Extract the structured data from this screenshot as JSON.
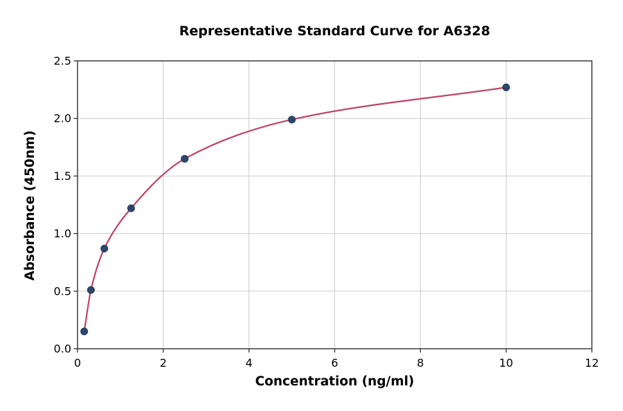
{
  "chart_data": {
    "type": "scatter",
    "title": "Representative Standard Curve for A6328",
    "xlabel": "Concentration (ng/ml)",
    "ylabel": "Absorbance (450nm)",
    "x": [
      0.156,
      0.3125,
      0.625,
      1.25,
      2.5,
      5,
      10
    ],
    "y": [
      0.15,
      0.51,
      0.87,
      1.22,
      1.65,
      1.99,
      2.27
    ],
    "fit": "smooth saturating fitted curve through all points, drawn from first to last point",
    "xlim": [
      0,
      12
    ],
    "ylim": [
      0,
      2.5
    ],
    "xticks": [
      0,
      2,
      4,
      6,
      8,
      10,
      12
    ],
    "xtick_labels": [
      "0",
      "2",
      "4",
      "6",
      "8",
      "10",
      "12"
    ],
    "yticks": [
      0.0,
      0.5,
      1.0,
      1.5,
      2.0,
      2.5
    ],
    "ytick_labels": [
      "0.0",
      "0.5",
      "1.0",
      "1.5",
      "2.0",
      "2.5"
    ],
    "grid": true,
    "legend": "none",
    "colors": {
      "marker": "#2d486e",
      "marker_edge": "#24395a",
      "curve": "#c04368",
      "grid": "#cccccc",
      "spine": "#3c3c3c",
      "text": "#000000",
      "background": "#ffffff"
    }
  }
}
